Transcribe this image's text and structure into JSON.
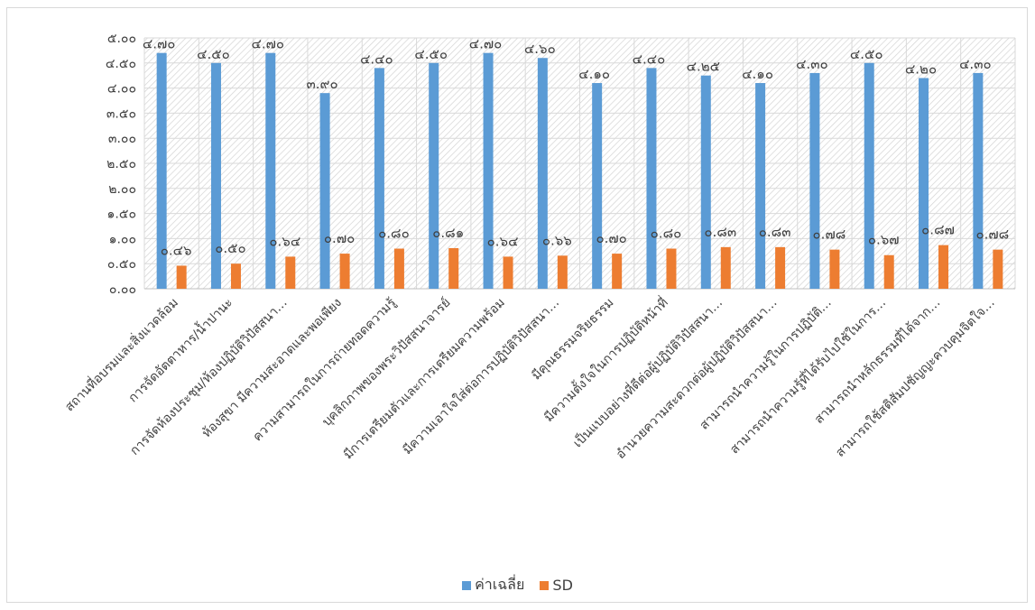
{
  "chart_data": {
    "type": "bar",
    "categories": [
      "สถานที่อบรมและสิ่งแวดล้อม",
      "การจัดอัตตาหาร/น้ำปานะ",
      "การจัดห้องประชุม/ห้องปฏิบัติวิปัสสนา…",
      "ห้องสุขา มีความสะอาดและพอเพียง",
      "ความสามารถในการถ่ายทอดความรู้",
      "บุคลิกภาพของพระวิปัสสนาจารย์",
      "มีการเตรียมตัวและการเตรียมความพร้อม",
      "มีความเอาใจใส่ต่อการปฏิบัติวิปัสสนา…",
      "มีคุณธรรมจริยธรรม",
      "มีความตั้งใจในการปฏิบัติหน้าที่",
      "เป็นแบบอย่างที่ดีต่อผู้ปฏิบัติวิปัสสนา…",
      "อำนวยความสะดวกต่อผู้ปฏิบัติวิปัสสนา…",
      "สามารถนำความรู้ในการปฏิบัติ…",
      "สามารถนำความรู้ที่ได้รับไปใช้ในการ…",
      "สามารถนำหลักธรรมที่ได้จาก…",
      "สามารถใช้สติสัมปชัญญะควบคุมจิตใจ…"
    ],
    "series": [
      {
        "name": "ค่าเฉลี่ย",
        "color": "#5b9bd5",
        "values": [
          4.7,
          4.5,
          4.7,
          3.9,
          4.4,
          4.5,
          4.7,
          4.6,
          4.1,
          4.4,
          4.25,
          4.1,
          4.3,
          4.5,
          4.2,
          4.3
        ],
        "labels": [
          "๔.๗๐",
          "๔.๕๐",
          "๔.๗๐",
          "๓.๙๐",
          "๔.๔๐",
          "๔.๕๐",
          "๔.๗๐",
          "๔.๖๐",
          "๔.๑๐",
          "๔.๔๐",
          "๔.๒๕",
          "๔.๑๐",
          "๔.๓๐",
          "๔.๕๐",
          "๔.๒๐",
          "๔.๓๐"
        ]
      },
      {
        "name": "SD",
        "color": "#ed7d31",
        "values": [
          0.46,
          0.5,
          0.64,
          0.7,
          0.8,
          0.81,
          0.64,
          0.66,
          0.7,
          0.8,
          0.83,
          0.83,
          0.78,
          0.67,
          0.87,
          0.78
        ],
        "labels": [
          "๐.๔๖",
          "๐.๕๐",
          "๐.๖๔",
          "๐.๗๐",
          "๐.๘๐",
          "๐.๘๑",
          "๐.๖๔",
          "๐.๖๖",
          "๐.๗๐",
          "๐.๘๐",
          "๐.๘๓",
          "๐.๘๓",
          "๐.๗๘",
          "๐.๖๗",
          "๐.๘๗",
          "๐.๗๘"
        ]
      }
    ],
    "yticks": [
      0,
      0.5,
      1.0,
      1.5,
      2.0,
      2.5,
      3.0,
      3.5,
      4.0,
      4.5,
      5.0
    ],
    "ytick_labels": [
      "๐.๐๐",
      "๐.๕๐",
      "๑.๐๐",
      "๑.๕๐",
      "๒.๐๐",
      "๒.๕๐",
      "๓.๐๐",
      "๓.๕๐",
      "๔.๐๐",
      "๔.๕๐",
      "๕.๐๐"
    ],
    "ylim": [
      0,
      5
    ],
    "title": "",
    "xlabel": "",
    "ylabel": "",
    "grid": true,
    "plot_pattern": "diagonal-hatch",
    "legend_position": "bottom"
  }
}
